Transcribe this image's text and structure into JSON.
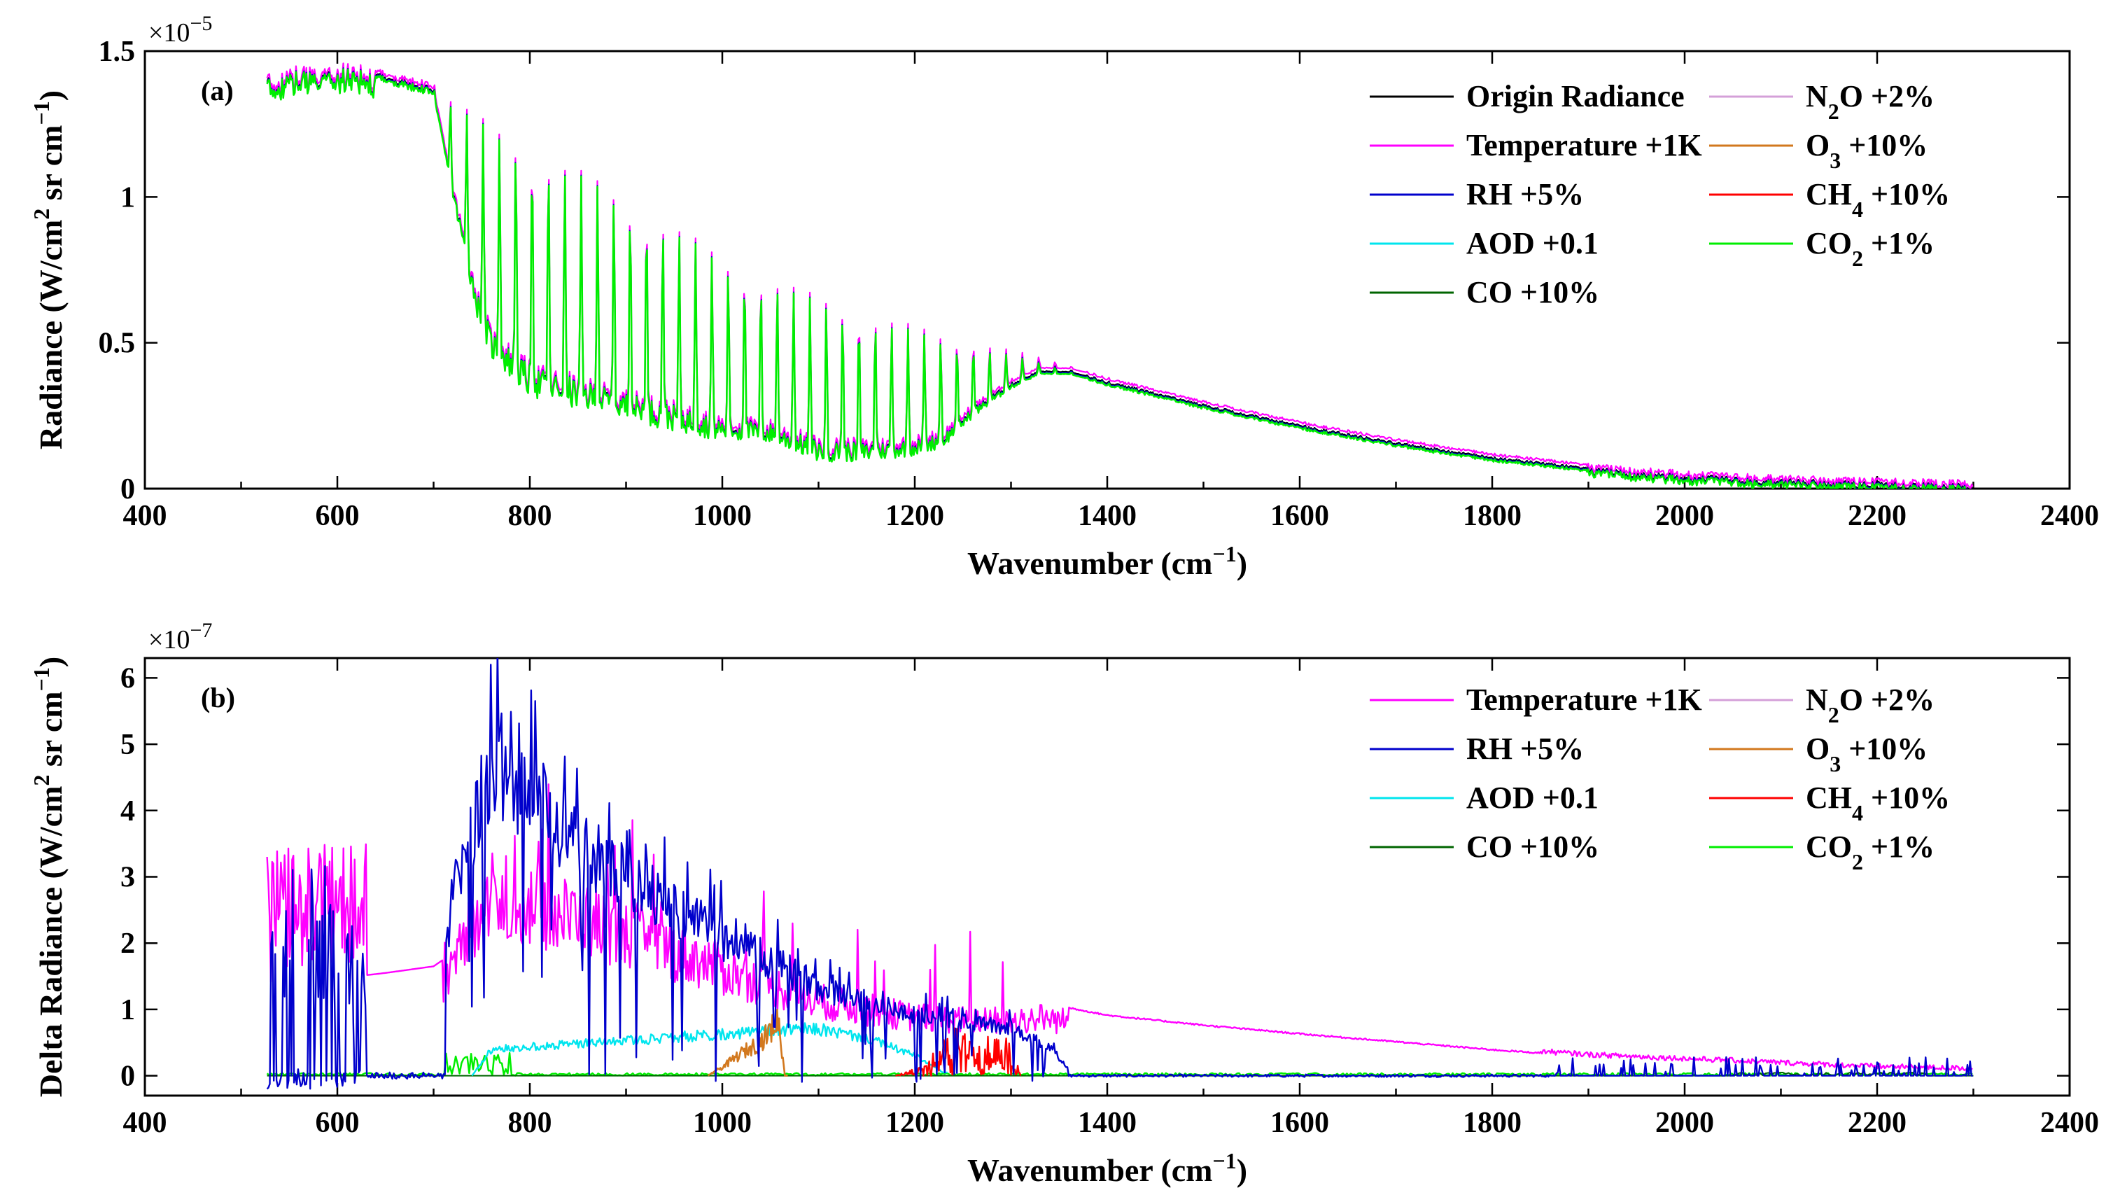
{
  "chart_data": [
    {
      "type": "line",
      "panel_label": "(a)",
      "xlabel_text": "Wavenumber (cm",
      "xlabel_sup": "−1",
      "xlabel_close": ")",
      "ylabel_text": "Radiance (W/cm",
      "ylabel_sup": "2",
      "ylabel_mid": " sr cm",
      "ylabel_sup2": "−1",
      "ylabel_close": ")",
      "y_multiplier": "×10",
      "y_multiplier_exp": "−5",
      "xlim": [
        400,
        2400
      ],
      "ylim": [
        0,
        1.5
      ],
      "xticks": [
        "400",
        "600",
        "800",
        "1000",
        "1200",
        "1400",
        "1600",
        "1800",
        "2000",
        "2200",
        "2400"
      ],
      "yticks": [
        "0",
        "0.5",
        "1",
        "1.5"
      ],
      "x_range": [
        527,
        2300
      ],
      "envelope": {
        "x": [
          527,
          560,
          600,
          620,
          650,
          700,
          710,
          730,
          760,
          800,
          850,
          900,
          950,
          1000,
          1050,
          1100,
          1150,
          1200,
          1250,
          1300,
          1350,
          1400,
          1500,
          1600,
          1700,
          1800,
          1900,
          2000,
          2100,
          2200,
          2300
        ],
        "y": [
          1.42,
          1.44,
          1.45,
          1.45,
          1.42,
          1.38,
          1.36,
          1.33,
          1.28,
          1.22,
          1.13,
          1.03,
          0.93,
          0.82,
          0.74,
          0.68,
          0.62,
          0.57,
          0.52,
          0.47,
          0.42,
          0.37,
          0.29,
          0.22,
          0.16,
          0.11,
          0.075,
          0.05,
          0.035,
          0.025,
          0.018
        ]
      },
      "floor": {
        "x": [
          527,
          600,
          640,
          700,
          720,
          745,
          760,
          800,
          900,
          1000,
          1050,
          1100,
          1150,
          1200,
          1230,
          1260,
          1300,
          1330,
          1360,
          1400
        ],
        "y": [
          1.34,
          1.37,
          1.39,
          1.36,
          1.0,
          0.6,
          0.45,
          0.32,
          0.24,
          0.17,
          0.16,
          0.1,
          0.1,
          0.12,
          0.15,
          0.25,
          0.35,
          0.4,
          0.4,
          0.37
        ]
      },
      "series": [
        {
          "name": "Origin Radiance",
          "color": "#000000"
        },
        {
          "name": "Temperature +1K",
          "color": "#ff00ff"
        },
        {
          "name": "RH +5%",
          "color": "#0000cc"
        },
        {
          "name": "AOD +0.1",
          "color": "#00e5ee"
        },
        {
          "name": "CO +10%",
          "color": "#006400"
        },
        {
          "name": "N2O +2%",
          "color": "#d4a0d8"
        },
        {
          "name": "O3 +10%",
          "color": "#d2781e"
        },
        {
          "name": "CH4 +10%",
          "color": "#ff0000"
        },
        {
          "name": "CO2 +1%",
          "color": "#00ee00"
        }
      ],
      "legend": {
        "placement": "top-right",
        "left": [
          {
            "color": "#000000",
            "text": "Origin Radiance",
            "sub": "",
            "tail": ""
          },
          {
            "color": "#ff00ff",
            "text": "Temperature +1K",
            "sub": "",
            "tail": ""
          },
          {
            "color": "#0000cc",
            "text": "RH +5%",
            "sub": "",
            "tail": ""
          },
          {
            "color": "#00e5ee",
            "text": "AOD +0.1",
            "sub": "",
            "tail": ""
          },
          {
            "color": "#006400",
            "text": "CO +10%",
            "sub": "",
            "tail": ""
          }
        ],
        "right": [
          {
            "color": "#d4a0d8",
            "text": "N",
            "sub": "2",
            "tail": "O +2%"
          },
          {
            "color": "#d2781e",
            "text": "O",
            "sub": "3",
            "tail": " +10%"
          },
          {
            "color": "#ff0000",
            "text": "CH",
            "sub": "4",
            "tail": " +10%"
          },
          {
            "color": "#00ee00",
            "text": "CO",
            "sub": "2",
            "tail": " +1%"
          }
        ]
      }
    },
    {
      "type": "line",
      "panel_label": "(b)",
      "xlabel_text": "Wavenumber (cm",
      "xlabel_sup": "−1",
      "xlabel_close": ")",
      "ylabel_text": "Delta Radiance (W/cm",
      "ylabel_sup": "2",
      "ylabel_mid": " sr cm",
      "ylabel_sup2": "−1",
      "ylabel_close": ")",
      "y_multiplier": "×10",
      "y_multiplier_exp": "−7",
      "xlim": [
        400,
        2400
      ],
      "ylim": [
        -0.3,
        6.3
      ],
      "xticks": [
        "400",
        "600",
        "800",
        "1000",
        "1200",
        "1400",
        "1600",
        "1800",
        "2000",
        "2200",
        "2400"
      ],
      "yticks": [
        "0",
        "1",
        "2",
        "3",
        "4",
        "5",
        "6"
      ],
      "temperature_envelope": {
        "x": [
          527,
          560,
          600,
          620,
          650,
          700,
          715,
          740,
          760,
          800,
          900,
          1000,
          1100,
          1200,
          1300,
          1330,
          1400,
          1500,
          1600,
          1700,
          1800,
          1900,
          2000,
          2100,
          2200,
          2300
        ],
        "y": [
          1.4,
          1.45,
          1.5,
          1.5,
          1.55,
          1.65,
          1.8,
          2.8,
          3.4,
          3.2,
          2.7,
          2.0,
          1.4,
          1.1,
          1.0,
          1.1,
          0.9,
          0.75,
          0.62,
          0.5,
          0.38,
          0.28,
          0.22,
          0.16,
          0.1,
          0.07
        ]
      },
      "rh_envelope": {
        "x": [
          530,
          560,
          600,
          630,
          700,
          720,
          760,
          800,
          850,
          900,
          1000,
          1100,
          1200,
          1250,
          1300,
          1340,
          1360
        ],
        "y": [
          1.8,
          3.0,
          2.5,
          1.5,
          0.2,
          3.0,
          5.2,
          4.6,
          3.9,
          3.3,
          2.3,
          1.5,
          1.0,
          0.9,
          0.8,
          0.5,
          0.1
        ]
      },
      "aod_envelope": {
        "x": [
          740,
          760,
          800,
          900,
          1000,
          1060,
          1100,
          1150,
          1200,
          1230
        ],
        "y": [
          0.0,
          0.45,
          0.5,
          0.6,
          0.72,
          0.78,
          0.8,
          0.65,
          0.35,
          0.05
        ]
      },
      "legend": {
        "placement": "top-right",
        "left": [
          {
            "color": "#ff00ff",
            "text": "Temperature +1K",
            "sub": "",
            "tail": ""
          },
          {
            "color": "#0000cc",
            "text": "RH +5%",
            "sub": "",
            "tail": ""
          },
          {
            "color": "#00e5ee",
            "text": "AOD +0.1",
            "sub": "",
            "tail": ""
          },
          {
            "color": "#006400",
            "text": "CO +10%",
            "sub": "",
            "tail": ""
          }
        ],
        "right": [
          {
            "color": "#d4a0d8",
            "text": "N",
            "sub": "2",
            "tail": "O +2%"
          },
          {
            "color": "#d2781e",
            "text": "O",
            "sub": "3",
            "tail": " +10%"
          },
          {
            "color": "#ff0000",
            "text": "CH",
            "sub": "4",
            "tail": " +10%"
          },
          {
            "color": "#00ee00",
            "text": "CO",
            "sub": "2",
            "tail": " +1%"
          }
        ]
      }
    }
  ]
}
